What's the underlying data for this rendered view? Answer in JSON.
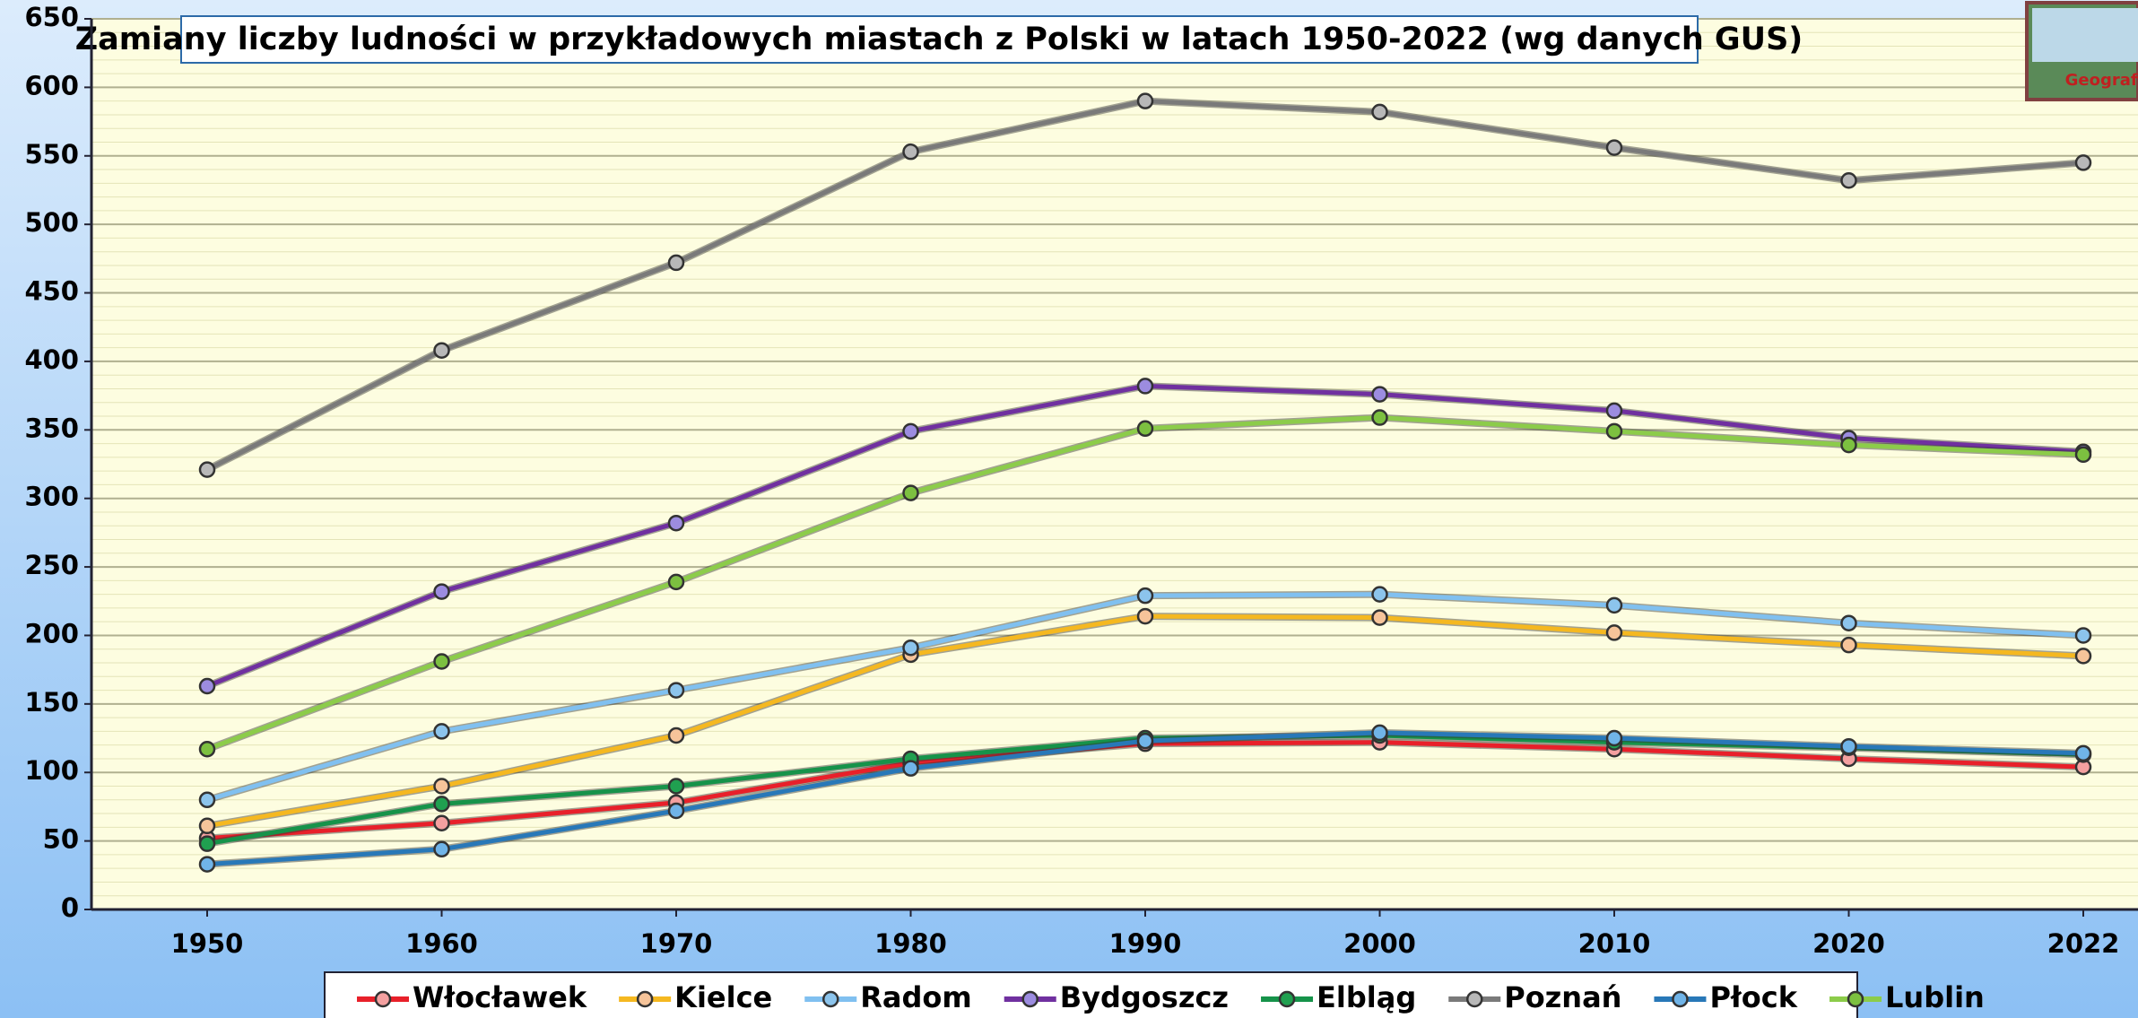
{
  "chart_data": {
    "type": "line",
    "title": "Zamiany liczby ludności w przykładowych miastach z Polski w latach 1950-2022 (wg danych GUS)",
    "logo": "Geografia",
    "categories": [
      "1950",
      "1960",
      "1970",
      "1980",
      "1990",
      "2000",
      "2010",
      "2020",
      "2022"
    ],
    "ylim": [
      0,
      650
    ],
    "yticks": [
      0,
      50,
      100,
      150,
      200,
      250,
      300,
      350,
      400,
      450,
      500,
      550,
      600,
      650
    ],
    "grid": true,
    "legend": "bottom",
    "series": [
      {
        "name": "Włocławek",
        "color": "#e8202a",
        "marker_color": "#f4a0a0",
        "values": [
          52,
          63,
          78,
          107,
          121,
          122,
          117,
          110,
          104
        ]
      },
      {
        "name": "Kielce",
        "color": "#f5b820",
        "marker_color": "#f6c49a",
        "values": [
          61,
          90,
          127,
          186,
          214,
          213,
          202,
          193,
          185
        ]
      },
      {
        "name": "Radom",
        "color": "#80c0f0",
        "marker_color": "#8cc4ec",
        "values": [
          80,
          130,
          160,
          191,
          229,
          230,
          222,
          209,
          200
        ]
      },
      {
        "name": "Bydgoszcz",
        "color": "#7030a0",
        "marker_color": "#9c8ce0",
        "values": [
          163,
          232,
          282,
          349,
          382,
          376,
          364,
          344,
          334
        ]
      },
      {
        "name": "Elbląg",
        "color": "#16934a",
        "marker_color": "#20a050",
        "values": [
          48,
          77,
          90,
          110,
          125,
          127,
          122,
          118,
          113
        ]
      },
      {
        "name": "Poznań",
        "color": "#7a7a7a",
        "marker_color": "#b8b8b8",
        "values": [
          321,
          408,
          472,
          553,
          590,
          582,
          556,
          532,
          545
        ]
      },
      {
        "name": "Płock",
        "color": "#2878b8",
        "marker_color": "#70b4e8",
        "values": [
          33,
          44,
          72,
          103,
          123,
          129,
          125,
          119,
          114
        ]
      },
      {
        "name": "Lublin",
        "color": "#8ccc4a",
        "marker_color": "#7cc040",
        "values": [
          117,
          181,
          239,
          304,
          351,
          359,
          349,
          339,
          332
        ]
      }
    ]
  }
}
